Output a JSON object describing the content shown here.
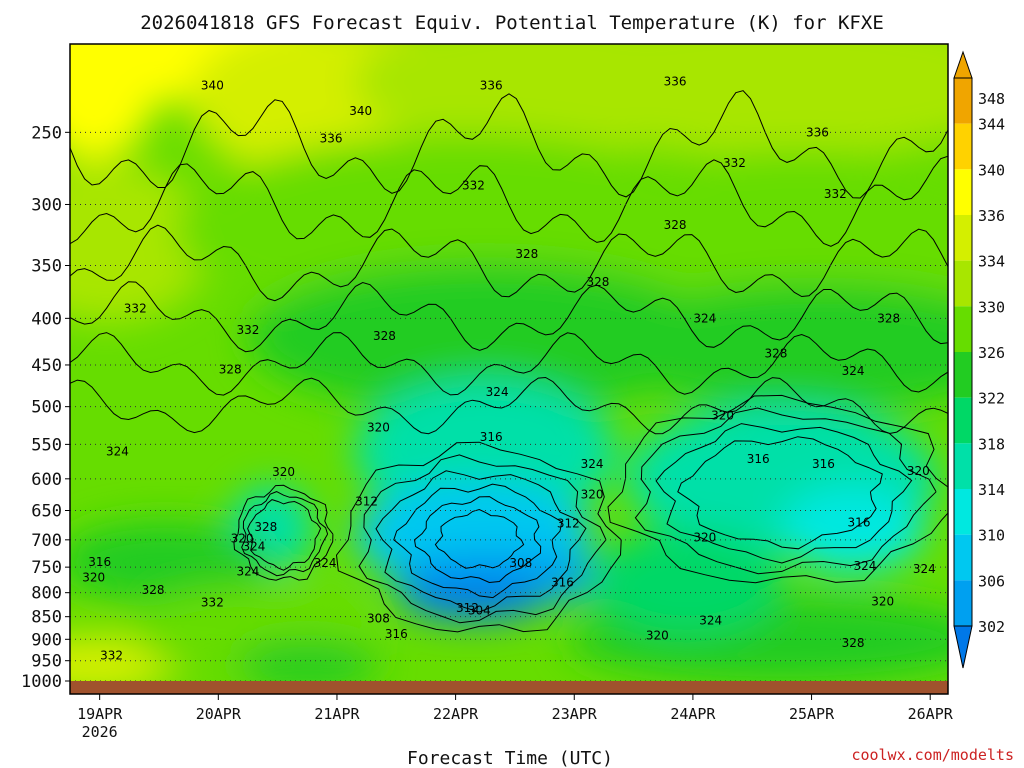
{
  "chart_data": {
    "type": "heatmap",
    "title": "2026041818 GFS Forecast Equiv. Potential Temperature (K) for KFXE",
    "xlabel": "Forecast Time (UTC)",
    "ylabel": "",
    "watermark": "coolwx.com/modelts",
    "x_ticks": [
      "19APR",
      "20APR",
      "21APR",
      "22APR",
      "23APR",
      "24APR",
      "25APR",
      "26APR"
    ],
    "x_year": "2026",
    "x_range_days": [
      0,
      7.4
    ],
    "y_ticks": [
      250,
      300,
      350,
      400,
      450,
      500,
      550,
      600,
      650,
      700,
      750,
      800,
      850,
      900,
      950,
      1000
    ],
    "ylim": [
      200,
      1000
    ],
    "colorbar": {
      "levels": [
        348,
        344,
        340,
        336,
        334,
        330,
        326,
        322,
        318,
        314,
        310,
        306,
        302
      ],
      "colors": [
        "#f0a500",
        "#ffd200",
        "#ffff00",
        "#d4ef00",
        "#a8e600",
        "#66dd00",
        "#22cc22",
        "#00d866",
        "#00e0a8",
        "#00e8e0",
        "#00c8f0",
        "#00a0f0",
        "#0078e8"
      ]
    },
    "contour_labels": [
      {
        "text": "340",
        "t": 1.2,
        "p": 222
      },
      {
        "text": "340",
        "t": 2.45,
        "p": 237
      },
      {
        "text": "336",
        "t": 2.2,
        "p": 254
      },
      {
        "text": "336",
        "t": 3.55,
        "p": 222
      },
      {
        "text": "336",
        "t": 5.1,
        "p": 220
      },
      {
        "text": "336",
        "t": 6.3,
        "p": 250
      },
      {
        "text": "332",
        "t": 3.4,
        "p": 286
      },
      {
        "text": "332",
        "t": 5.6,
        "p": 270
      },
      {
        "text": "332",
        "t": 6.45,
        "p": 292
      },
      {
        "text": "332",
        "t": 0.55,
        "p": 390
      },
      {
        "text": "332",
        "t": 1.5,
        "p": 412
      },
      {
        "text": "328",
        "t": 3.85,
        "p": 340
      },
      {
        "text": "328",
        "t": 5.1,
        "p": 316
      },
      {
        "text": "328",
        "t": 4.45,
        "p": 365
      },
      {
        "text": "328",
        "t": 2.65,
        "p": 418
      },
      {
        "text": "328",
        "t": 1.35,
        "p": 455
      },
      {
        "text": "328",
        "t": 6.9,
        "p": 400
      },
      {
        "text": "328",
        "t": 5.95,
        "p": 437
      },
      {
        "text": "324",
        "t": 5.35,
        "p": 400
      },
      {
        "text": "324",
        "t": 6.6,
        "p": 457
      },
      {
        "text": "324",
        "t": 3.6,
        "p": 482
      },
      {
        "text": "324",
        "t": 0.4,
        "p": 560
      },
      {
        "text": "324",
        "t": 4.4,
        "p": 578
      },
      {
        "text": "324",
        "t": 2.15,
        "p": 742
      },
      {
        "text": "324",
        "t": 1.55,
        "p": 712
      },
      {
        "text": "324",
        "t": 5.4,
        "p": 858
      },
      {
        "text": "324",
        "t": 7.2,
        "p": 754
      },
      {
        "text": "320",
        "t": 2.6,
        "p": 527
      },
      {
        "text": "320",
        "t": 5.5,
        "p": 511
      },
      {
        "text": "320",
        "t": 1.8,
        "p": 590
      },
      {
        "text": "320",
        "t": 4.4,
        "p": 624
      },
      {
        "text": "320",
        "t": 7.15,
        "p": 588
      },
      {
        "text": "320",
        "t": 5.35,
        "p": 696
      },
      {
        "text": "320",
        "t": 4.95,
        "p": 891
      },
      {
        "text": "320",
        "t": 6.85,
        "p": 818
      },
      {
        "text": "320",
        "t": 0.2,
        "p": 770
      },
      {
        "text": "320",
        "t": 1.45,
        "p": 698
      },
      {
        "text": "316",
        "t": 3.55,
        "p": 540
      },
      {
        "text": "316",
        "t": 5.8,
        "p": 571
      },
      {
        "text": "316",
        "t": 6.35,
        "p": 578
      },
      {
        "text": "316",
        "t": 6.65,
        "p": 670
      },
      {
        "text": "316",
        "t": 4.15,
        "p": 780
      },
      {
        "text": "316",
        "t": 0.25,
        "p": 740
      },
      {
        "text": "316",
        "t": 2.75,
        "p": 888
      },
      {
        "text": "312",
        "t": 2.5,
        "p": 635
      },
      {
        "text": "312",
        "t": 4.2,
        "p": 672
      },
      {
        "text": "312",
        "t": 3.35,
        "p": 832
      },
      {
        "text": "308",
        "t": 3.8,
        "p": 742
      },
      {
        "text": "308",
        "t": 2.6,
        "p": 854
      },
      {
        "text": "304",
        "t": 3.45,
        "p": 837
      },
      {
        "text": "328",
        "t": 1.65,
        "p": 678
      },
      {
        "text": "328",
        "t": 0.7,
        "p": 795
      },
      {
        "text": "328",
        "t": 6.6,
        "p": 908
      },
      {
        "text": "332",
        "t": 1.2,
        "p": 820
      },
      {
        "text": "332",
        "t": 0.35,
        "p": 938
      },
      {
        "text": "324",
        "t": 6.7,
        "p": 748
      },
      {
        "text": "324",
        "t": 1.5,
        "p": 758
      }
    ]
  }
}
